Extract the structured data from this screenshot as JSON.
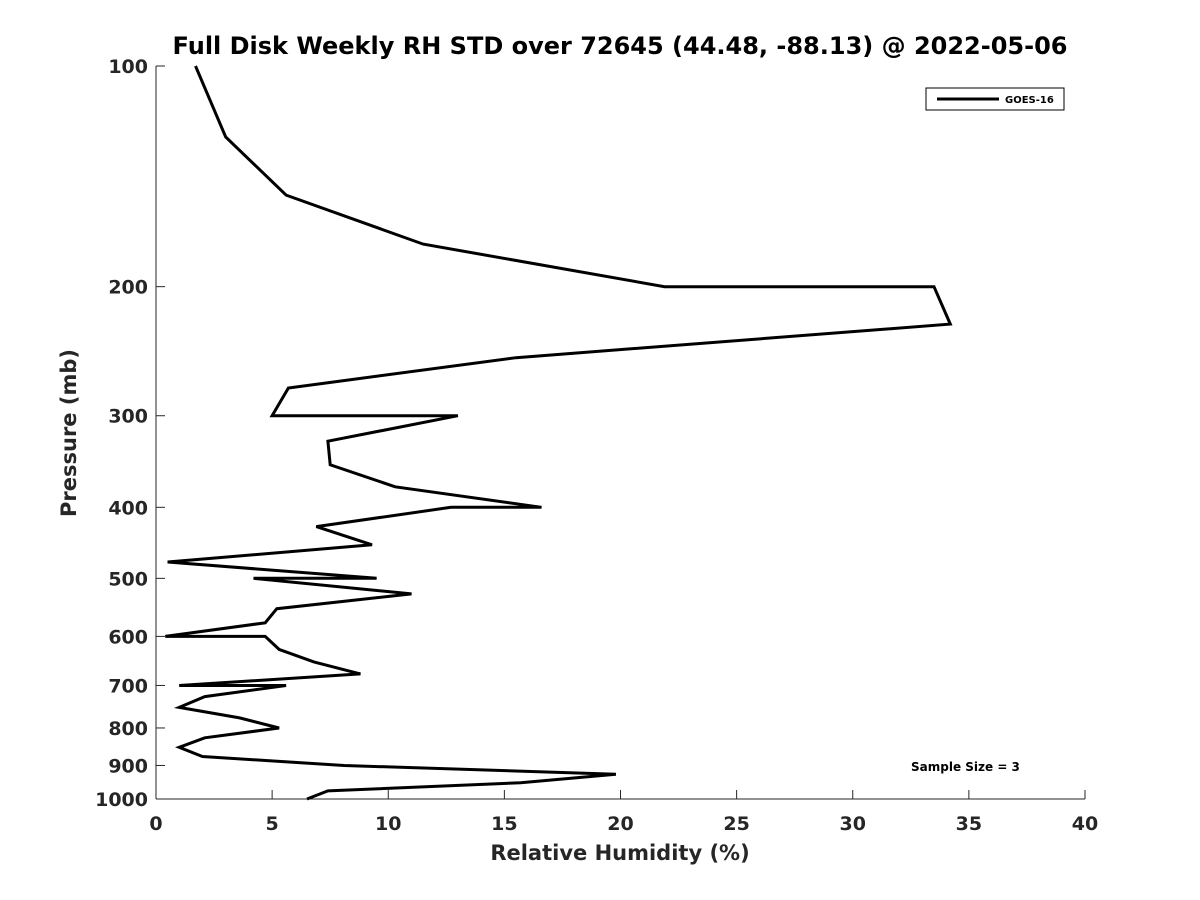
{
  "chart_data": {
    "type": "line",
    "title": "Full Disk Weekly RH STD over 72645 (44.48, -88.13) @ 2022-05-06",
    "xlabel": "Relative Humidity (%)",
    "ylabel": "Pressure (mb)",
    "xlim": [
      0,
      40
    ],
    "ylim": [
      100,
      1000
    ],
    "yscale": "log",
    "y_reversed": true,
    "xticks": [
      0,
      5,
      10,
      15,
      20,
      25,
      30,
      35,
      40
    ],
    "xtick_labels": [
      "0",
      "5",
      "10",
      "15",
      "20",
      "25",
      "30",
      "35",
      "40"
    ],
    "yticks": [
      100,
      200,
      300,
      400,
      500,
      600,
      700,
      800,
      900,
      1000
    ],
    "ytick_labels": [
      "100",
      "200",
      "300",
      "400",
      "500",
      "600",
      "700",
      "800",
      "900",
      "1000"
    ],
    "legend_position": "top-right",
    "annotation": "Sample Size = 3",
    "series": [
      {
        "name": "GOES-16",
        "color": "#000000",
        "points": [
          [
            1.7,
            100
          ],
          [
            3.0,
            125
          ],
          [
            5.6,
            150
          ],
          [
            11.5,
            175
          ],
          [
            21.9,
            200
          ],
          [
            33.5,
            200
          ],
          [
            34.2,
            225
          ],
          [
            15.5,
            250
          ],
          [
            5.7,
            275
          ],
          [
            5.0,
            300
          ],
          [
            13.0,
            300
          ],
          [
            7.4,
            325
          ],
          [
            7.5,
            350
          ],
          [
            10.3,
            375
          ],
          [
            16.6,
            400
          ],
          [
            12.7,
            400
          ],
          [
            6.9,
            425
          ],
          [
            9.3,
            450
          ],
          [
            0.5,
            475
          ],
          [
            9.5,
            500
          ],
          [
            4.2,
            500
          ],
          [
            11.0,
            525
          ],
          [
            5.2,
            550
          ],
          [
            4.7,
            575
          ],
          [
            0.4,
            600
          ],
          [
            4.7,
            600
          ],
          [
            5.3,
            625
          ],
          [
            6.8,
            650
          ],
          [
            8.8,
            675
          ],
          [
            1.0,
            700
          ],
          [
            5.6,
            700
          ],
          [
            2.1,
            725
          ],
          [
            1.0,
            750
          ],
          [
            3.6,
            775
          ],
          [
            5.3,
            800
          ],
          [
            2.1,
            825
          ],
          [
            1.0,
            850
          ],
          [
            2.0,
            875
          ],
          [
            8.1,
            900
          ],
          [
            19.8,
            925
          ],
          [
            15.7,
            950
          ],
          [
            7.4,
            975
          ],
          [
            6.5,
            1000
          ]
        ]
      }
    ]
  }
}
